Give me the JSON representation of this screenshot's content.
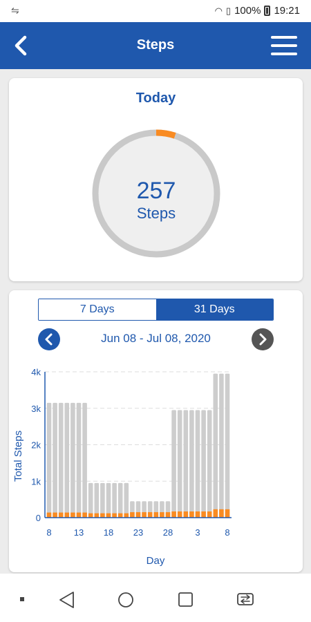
{
  "status_bar": {
    "battery": "100%",
    "time": "19:21"
  },
  "app_bar": {
    "title": "Steps"
  },
  "today": {
    "title": "Today",
    "steps_value": "257",
    "steps_unit": "Steps",
    "progress_fraction": 0.05
  },
  "history": {
    "ranges": [
      "7 Days",
      "31 Days"
    ],
    "selected_range": "31 Days",
    "date_range": "Jun 08 - Jul 08, 2020"
  },
  "colors": {
    "primary": "#1f58ad",
    "progress": "#f98b22",
    "track": "#c9c9c9",
    "bar": "#cdcdcd",
    "nav_next": "#555555"
  },
  "chart_data": {
    "type": "bar",
    "xlabel": "Day",
    "ylabel": "Total Steps",
    "ylim": [
      0,
      4000
    ],
    "yticks": [
      "0",
      "1k",
      "2k",
      "3k",
      "4k"
    ],
    "xticks": [
      "8",
      "13",
      "18",
      "23",
      "28",
      "3",
      "8"
    ],
    "categories": [
      "8",
      "9",
      "10",
      "11",
      "12",
      "13",
      "14",
      "15",
      "16",
      "17",
      "18",
      "19",
      "20",
      "21",
      "22",
      "23",
      "24",
      "25",
      "26",
      "27",
      "28",
      "29",
      "30",
      "1",
      "2",
      "3",
      "4",
      "5",
      "6",
      "7",
      "8"
    ],
    "series": [
      {
        "values": [
          3150,
          3150,
          3150,
          3150,
          3150,
          3150,
          3150,
          950,
          950,
          950,
          950,
          950,
          950,
          950,
          450,
          450,
          450,
          450,
          450,
          450,
          450,
          2950,
          2950,
          2950,
          2950,
          2950,
          2950,
          2950,
          3950,
          3950,
          3950
        ]
      },
      {
        "values": [
          140,
          140,
          140,
          140,
          140,
          140,
          140,
          120,
          120,
          120,
          120,
          120,
          120,
          120,
          150,
          150,
          150,
          150,
          150,
          150,
          150,
          170,
          170,
          170,
          170,
          170,
          170,
          170,
          230,
          230,
          230
        ]
      }
    ],
    "grid": true
  }
}
